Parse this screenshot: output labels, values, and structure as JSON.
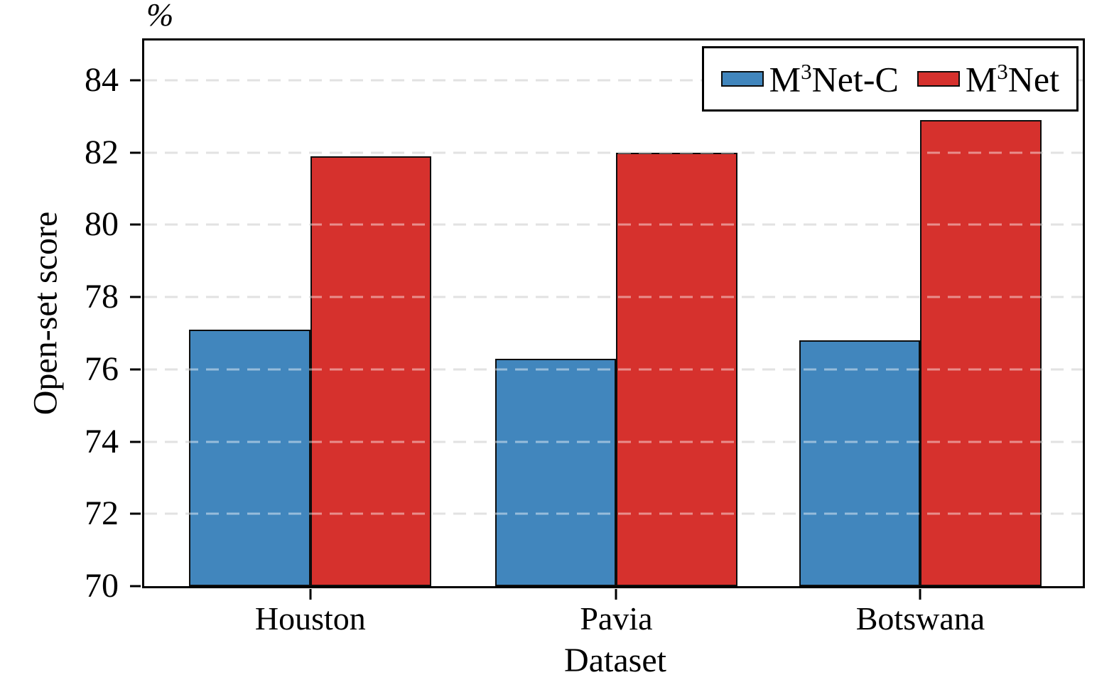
{
  "chart_data": {
    "type": "bar",
    "title": "",
    "unit_label": "%",
    "xlabel": "Dataset",
    "ylabel": "Open-set score",
    "categories": [
      "Houston",
      "Pavia",
      "Botswana"
    ],
    "series": [
      {
        "name": "M³Net-C",
        "label_parts": {
          "prefix": "M",
          "sup": "3",
          "suffix": "Net-C"
        },
        "color": "#4186bd",
        "values": [
          77.1,
          76.3,
          76.8
        ]
      },
      {
        "name": "M³Net",
        "label_parts": {
          "prefix": "M",
          "sup": "3",
          "suffix": "Net"
        },
        "color": "#d6312d",
        "values": [
          81.9,
          82.0,
          82.9
        ]
      }
    ],
    "ylim": [
      70,
      85.1
    ],
    "y_ticks": [
      70,
      72,
      74,
      76,
      78,
      80,
      82,
      84
    ],
    "grid": {
      "axis": "y",
      "style": "dashed",
      "color": "#cbcbcb"
    },
    "legend_position": "top-right",
    "bar_edge_color": "#0d0d0d",
    "axis_color": "#000000",
    "background_color": "#ffffff"
  }
}
